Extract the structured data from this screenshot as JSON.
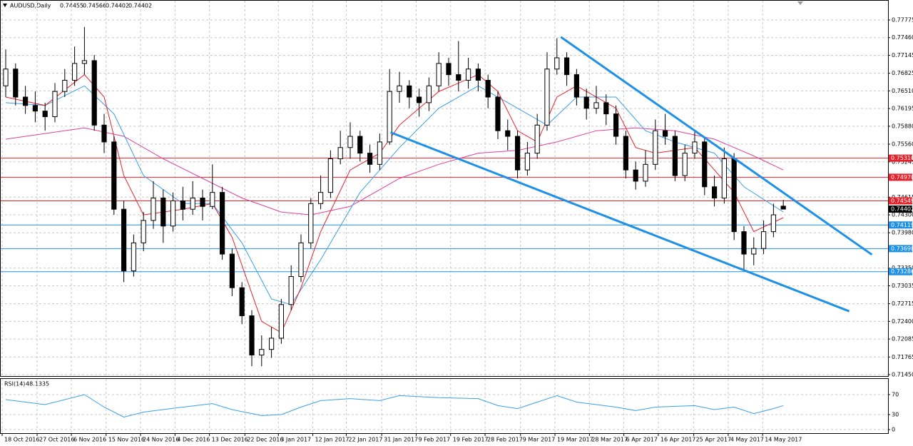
{
  "chart_data": {
    "type": "candlestick",
    "title": "AUDUSD,Daily",
    "ohlc": [
      [
        0.766,
        0.7725,
        0.764,
        0.769
      ],
      [
        0.769,
        0.77,
        0.7625,
        0.764
      ],
      [
        0.764,
        0.766,
        0.761,
        0.7625
      ],
      [
        0.7625,
        0.765,
        0.7595,
        0.7615
      ],
      [
        0.7615,
        0.763,
        0.758,
        0.7605
      ],
      [
        0.7605,
        0.7665,
        0.7595,
        0.765
      ],
      [
        0.765,
        0.769,
        0.764,
        0.767
      ],
      [
        0.767,
        0.773,
        0.766,
        0.77
      ],
      [
        0.77,
        0.7765,
        0.768,
        0.7705
      ],
      [
        0.7705,
        0.7715,
        0.758,
        0.759
      ],
      [
        0.759,
        0.761,
        0.754,
        0.756
      ],
      [
        0.756,
        0.757,
        0.743,
        0.744
      ],
      [
        0.744,
        0.7455,
        0.731,
        0.733
      ],
      [
        0.733,
        0.7395,
        0.732,
        0.738
      ],
      [
        0.738,
        0.7435,
        0.7365,
        0.742
      ],
      [
        0.742,
        0.749,
        0.7405,
        0.746
      ],
      [
        0.746,
        0.7475,
        0.738,
        0.741
      ],
      [
        0.741,
        0.747,
        0.74,
        0.7455
      ],
      [
        0.7455,
        0.748,
        0.742,
        0.744
      ],
      [
        0.744,
        0.749,
        0.743,
        0.746
      ],
      [
        0.746,
        0.7475,
        0.742,
        0.7445
      ],
      [
        0.7445,
        0.752,
        0.744,
        0.747
      ],
      [
        0.747,
        0.748,
        0.735,
        0.736
      ],
      [
        0.736,
        0.737,
        0.7285,
        0.73
      ],
      [
        0.73,
        0.731,
        0.7235,
        0.725
      ],
      [
        0.725,
        0.726,
        0.716,
        0.718
      ],
      [
        0.718,
        0.7215,
        0.716,
        0.719
      ],
      [
        0.719,
        0.723,
        0.7175,
        0.721
      ],
      [
        0.721,
        0.728,
        0.72,
        0.727
      ],
      [
        0.727,
        0.734,
        0.726,
        0.732
      ],
      [
        0.732,
        0.7395,
        0.731,
        0.738
      ],
      [
        0.738,
        0.746,
        0.737,
        0.745
      ],
      [
        0.745,
        0.75,
        0.744,
        0.747
      ],
      [
        0.747,
        0.7545,
        0.746,
        0.753
      ],
      [
        0.753,
        0.758,
        0.752,
        0.755
      ],
      [
        0.755,
        0.7595,
        0.753,
        0.757
      ],
      [
        0.757,
        0.758,
        0.7525,
        0.754
      ],
      [
        0.754,
        0.7555,
        0.7505,
        0.752
      ],
      [
        0.752,
        0.7575,
        0.751,
        0.756
      ],
      [
        0.756,
        0.769,
        0.7555,
        0.765
      ],
      [
        0.765,
        0.7685,
        0.763,
        0.766
      ],
      [
        0.766,
        0.767,
        0.762,
        0.764
      ],
      [
        0.764,
        0.7655,
        0.7605,
        0.763
      ],
      [
        0.763,
        0.7675,
        0.7615,
        0.766
      ],
      [
        0.766,
        0.772,
        0.765,
        0.77
      ],
      [
        0.77,
        0.771,
        0.766,
        0.768
      ],
      [
        0.768,
        0.774,
        0.765,
        0.767
      ],
      [
        0.767,
        0.771,
        0.7655,
        0.769
      ],
      [
        0.769,
        0.77,
        0.765,
        0.767
      ],
      [
        0.767,
        0.768,
        0.762,
        0.764
      ],
      [
        0.764,
        0.765,
        0.7565,
        0.758
      ],
      [
        0.758,
        0.76,
        0.7545,
        0.757
      ],
      [
        0.757,
        0.758,
        0.7495,
        0.751
      ],
      [
        0.751,
        0.756,
        0.75,
        0.754
      ],
      [
        0.754,
        0.761,
        0.753,
        0.759
      ],
      [
        0.759,
        0.772,
        0.758,
        0.769
      ],
      [
        0.769,
        0.7745,
        0.768,
        0.771
      ],
      [
        0.771,
        0.772,
        0.766,
        0.768
      ],
      [
        0.768,
        0.769,
        0.7625,
        0.764
      ],
      [
        0.764,
        0.7655,
        0.76,
        0.762
      ],
      [
        0.762,
        0.766,
        0.761,
        0.763
      ],
      [
        0.763,
        0.7645,
        0.759,
        0.761
      ],
      [
        0.761,
        0.7625,
        0.7555,
        0.757
      ],
      [
        0.757,
        0.758,
        0.7495,
        0.751
      ],
      [
        0.751,
        0.7525,
        0.7475,
        0.749
      ],
      [
        0.749,
        0.7545,
        0.748,
        0.752
      ],
      [
        0.752,
        0.76,
        0.751,
        0.758
      ],
      [
        0.758,
        0.761,
        0.7555,
        0.757
      ],
      [
        0.757,
        0.758,
        0.749,
        0.75
      ],
      [
        0.75,
        0.7555,
        0.749,
        0.754
      ],
      [
        0.754,
        0.758,
        0.753,
        0.756
      ],
      [
        0.756,
        0.757,
        0.7465,
        0.748
      ],
      [
        0.748,
        0.75,
        0.7445,
        0.746
      ],
      [
        0.746,
        0.755,
        0.745,
        0.753
      ],
      [
        0.753,
        0.754,
        0.7385,
        0.74
      ],
      [
        0.74,
        0.741,
        0.733,
        0.736
      ],
      [
        0.736,
        0.739,
        0.734,
        0.737
      ],
      [
        0.737,
        0.742,
        0.736,
        0.74
      ],
      [
        0.74,
        0.745,
        0.739,
        0.743
      ],
      [
        0.74455,
        0.74566,
        0.74402,
        0.74402
      ]
    ],
    "xlim": [
      -0.58,
      89.64
    ],
    "xticks": [
      {
        "value": -0.36,
        "label": "18 Oct 2016"
      },
      {
        "value": 3.19,
        "label": "27 Oct 2016"
      },
      {
        "value": 6.67,
        "label": "6 Nov 2016"
      },
      {
        "value": 10.2,
        "label": "15 Nov 2016"
      },
      {
        "value": 13.7,
        "label": "24 Nov 2016"
      },
      {
        "value": 17.2,
        "label": "4 Dec 2016"
      },
      {
        "value": 20.7,
        "label": "13 Dec 2016"
      },
      {
        "value": 24.3,
        "label": "22 Dec 2016"
      },
      {
        "value": 27.7,
        "label": "3 Jan 2017"
      },
      {
        "value": 31.2,
        "label": "12 Jan 2017"
      },
      {
        "value": 34.6,
        "label": "22 Jan 2017"
      },
      {
        "value": 38.2,
        "label": "31 Jan 2017"
      },
      {
        "value": 41.7,
        "label": "9 Feb 2017"
      },
      {
        "value": 45.2,
        "label": "19 Feb 2017"
      },
      {
        "value": 48.7,
        "label": "28 Feb 2017"
      },
      {
        "value": 52.3,
        "label": "9 Mar 2017"
      },
      {
        "value": 55.8,
        "label": "19 Mar 2017"
      },
      {
        "value": 59.3,
        "label": "28 Mar 2017"
      },
      {
        "value": 62.8,
        "label": "6 Apr 2017"
      },
      {
        "value": 66.3,
        "label": "16 Apr 2017"
      },
      {
        "value": 69.9,
        "label": "25 Apr 2017"
      },
      {
        "value": 73.4,
        "label": "4 May 2017"
      },
      {
        "value": 76.9,
        "label": "14 May 2017"
      }
    ],
    "ylim": [
      0.71412,
      0.78131
    ],
    "yticks": [
      0.77775,
      {
        "value": 0.7746,
        "label": "0.77460"
      },
      0.77145,
      0.76825,
      {
        "value": 0.7651,
        "label": "0.76510"
      },
      0.76195,
      {
        "value": 0.7588,
        "label": "0.75880"
      },
      {
        "value": 0.7556,
        "label": "0.75560"
      },
      0.75245,
      0.74615,
      {
        "value": 0.743,
        "label": "0.74300"
      },
      {
        "value": 0.7398,
        "label": "0.73980"
      },
      {
        "value": 0.7335,
        "label": "0.73350"
      },
      0.73035,
      0.72715,
      {
        "value": 0.724,
        "label": "0.72400"
      },
      0.72085,
      0.71765,
      {
        "value": 0.7145,
        "label": "0.71450"
      }
    ],
    "grid": true,
    "up_color": "#ffffff",
    "down_color": "#000000",
    "moving_averages": [
      {
        "color": "#e0409a",
        "x": [
          0,
          8,
          12,
          16,
          20,
          24,
          28,
          31,
          35,
          40,
          44,
          48,
          52,
          56,
          60,
          64,
          68,
          72,
          76,
          79
        ],
        "values": [
          0.7565,
          0.7585,
          0.757,
          0.753,
          0.7495,
          0.746,
          0.7435,
          0.743,
          0.7445,
          0.7495,
          0.752,
          0.754,
          0.7545,
          0.756,
          0.758,
          0.7585,
          0.758,
          0.7565,
          0.7535,
          0.751
        ]
      },
      {
        "color": "#3a9fe6",
        "x": [
          0,
          4,
          8,
          11,
          14,
          18,
          21,
          24,
          27,
          29,
          32,
          36,
          40,
          44,
          48,
          52,
          55,
          58,
          62,
          65,
          68,
          72,
          75,
          79
        ],
        "values": [
          0.763,
          0.7625,
          0.766,
          0.761,
          0.75,
          0.745,
          0.745,
          0.738,
          0.728,
          0.727,
          0.735,
          0.747,
          0.755,
          0.762,
          0.766,
          0.762,
          0.759,
          0.764,
          0.764,
          0.758,
          0.756,
          0.754,
          0.748,
          0.7435
        ]
      },
      {
        "color": "#e8202a",
        "x": [
          0,
          4,
          8,
          10,
          12,
          14,
          18,
          21,
          23,
          26,
          28,
          30,
          32,
          35,
          38,
          40,
          44,
          48,
          50,
          52,
          54,
          56,
          58,
          62,
          64,
          66,
          70,
          72,
          74,
          76,
          79
        ],
        "values": [
          0.764,
          0.7625,
          0.768,
          0.764,
          0.75,
          0.743,
          0.744,
          0.745,
          0.739,
          0.724,
          0.722,
          0.73,
          0.74,
          0.751,
          0.754,
          0.759,
          0.765,
          0.768,
          0.765,
          0.758,
          0.756,
          0.764,
          0.766,
          0.762,
          0.755,
          0.754,
          0.755,
          0.751,
          0.747,
          0.74,
          0.7425
        ]
      }
    ],
    "trendlines": [
      {
        "color": "#1e90e6",
        "x": [
          56.4,
          88
        ],
        "values": [
          0.7747,
          0.7359
        ]
      },
      {
        "color": "#1e90e6",
        "x": [
          39.1,
          85.7
        ],
        "values": [
          0.7577,
          0.7258
        ]
      }
    ],
    "levels": [
      {
        "value": 0.7531,
        "label": "0.75310",
        "color": "#e8202a"
      },
      {
        "value": 0.7497,
        "label": "0.74970",
        "color": "#e8202a"
      },
      {
        "value": 0.74549,
        "label": "0.74549",
        "color": "#e8202a"
      },
      {
        "value": 0.74119,
        "label": "0.74119",
        "color": "#1e90e6"
      },
      {
        "value": 0.73698,
        "label": "0.73698",
        "color": "#1e90e6"
      },
      {
        "value": 0.73286,
        "label": "0.73286",
        "color": "#1e90e6"
      }
    ],
    "indicator": {
      "title": "RSI(14)",
      "value": 48.1335,
      "color": "#3a9fe6",
      "ylim": [
        -8.6,
        102.9
      ],
      "yticks": [
        70,
        30,
        0
      ],
      "x": [
        0,
        4,
        8,
        10,
        12,
        14,
        18,
        21,
        23,
        26,
        28,
        30,
        32,
        35,
        38,
        40,
        44,
        48,
        50,
        52,
        54,
        56,
        58,
        62,
        64,
        66,
        70,
        72,
        74,
        76,
        78,
        79
      ],
      "values": [
        60,
        50,
        70,
        45,
        25,
        35,
        45,
        52,
        40,
        28,
        30,
        45,
        58,
        62,
        58,
        68,
        64,
        62,
        48,
        42,
        55,
        68,
        55,
        45,
        38,
        45,
        48,
        40,
        45,
        32,
        42,
        48.1335
      ]
    }
  }
}
